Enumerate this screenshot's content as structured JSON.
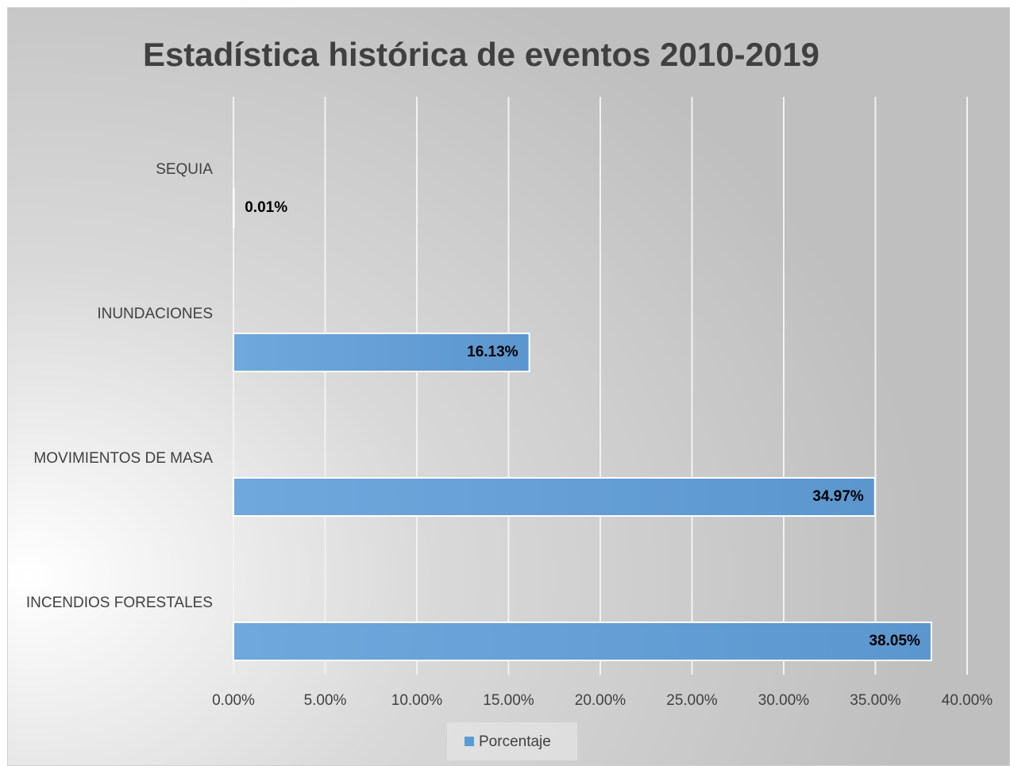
{
  "chart_data": {
    "type": "hbar",
    "title": "Estadística histórica de eventos 2010-2019",
    "categories": [
      "SEQUIA",
      "INUNDACIONES",
      "MOVIMIENTOS DE MASA",
      "INCENDIOS FORESTALES"
    ],
    "series": [
      {
        "name": "Porcentaje",
        "color": "#5b9bd5",
        "values": [
          0.01,
          16.13,
          34.97,
          38.05
        ],
        "value_labels": [
          "0.01%",
          "16.13%",
          "34.97%",
          "38.05%"
        ]
      }
    ],
    "xlim": [
      0,
      40
    ],
    "xticks": [
      {
        "value": 0,
        "label": "0.00%"
      },
      {
        "value": 5,
        "label": "5.00%"
      },
      {
        "value": 10,
        "label": "10.00%"
      },
      {
        "value": 15,
        "label": "15.00%"
      },
      {
        "value": 20,
        "label": "20.00%"
      },
      {
        "value": 25,
        "label": "25.00%"
      },
      {
        "value": 30,
        "label": "30.00%"
      },
      {
        "value": 35,
        "label": "35.00%"
      },
      {
        "value": 40,
        "label": "40.00%"
      }
    ],
    "grid": true,
    "legend": "bottom"
  }
}
